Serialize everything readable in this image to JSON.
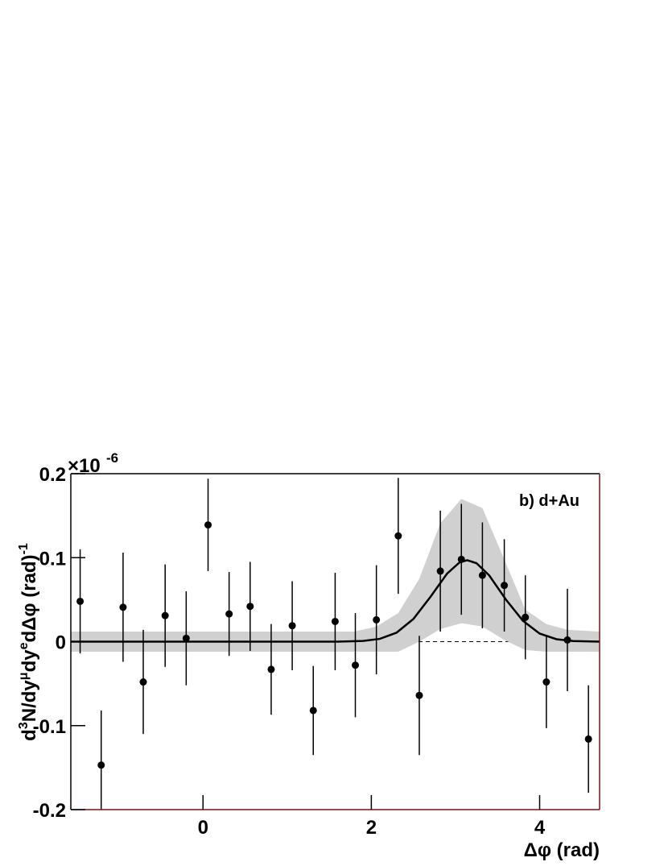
{
  "chart_data": {
    "type": "errorbar",
    "annotation": "b) d+Au",
    "xlabel": "Δφ (rad)",
    "ylabel_parts": [
      "d",
      "3",
      "N/dy",
      "μ",
      "dy",
      "e",
      "dΔφ (rad)",
      "-1"
    ],
    "y_multiplier": "×10",
    "y_exponent": "-6",
    "xlim": [
      -1.5708,
      4.7124
    ],
    "ylim": [
      -0.2,
      0.2
    ],
    "xticks": [
      0,
      2,
      4
    ],
    "yticks": [
      -0.2,
      -0.1,
      0,
      0.1,
      0.2
    ],
    "point_color": "#000000",
    "fit_color": "#000000",
    "band_color": "#d0d0d0",
    "points": {
      "x": [
        -1.46,
        -1.21,
        -0.95,
        -0.71,
        -0.45,
        -0.2,
        0.06,
        0.31,
        0.56,
        0.81,
        1.06,
        1.31,
        1.57,
        1.81,
        2.06,
        2.32,
        2.57,
        2.82,
        3.07,
        3.32,
        3.58,
        3.83,
        4.08,
        4.33,
        4.58
      ],
      "y": [
        0.048,
        -0.147,
        0.041,
        -0.048,
        0.031,
        0.004,
        0.139,
        0.033,
        0.042,
        -0.033,
        0.019,
        -0.082,
        0.024,
        -0.028,
        0.026,
        0.126,
        -0.064,
        0.084,
        0.098,
        0.079,
        0.067,
        0.029,
        -0.048,
        0.002,
        -0.116
      ],
      "yerr": [
        0.062,
        0.065,
        0.065,
        0.062,
        0.061,
        0.056,
        0.055,
        0.05,
        0.053,
        0.054,
        0.053,
        0.053,
        0.058,
        0.062,
        0.065,
        0.069,
        0.071,
        0.072,
        0.066,
        0.063,
        0.055,
        0.05,
        0.055,
        0.061,
        0.064
      ]
    },
    "fit": {
      "x": [
        -1.5708,
        1.6,
        1.9,
        2.1,
        2.3,
        2.5,
        2.7,
        2.9,
        3.05,
        3.14,
        3.25,
        3.4,
        3.6,
        3.8,
        4.0,
        4.2,
        4.4,
        4.7124
      ],
      "y": [
        0,
        0,
        0.0008,
        0.0033,
        0.0107,
        0.027,
        0.053,
        0.081,
        0.0945,
        0.097,
        0.0934,
        0.079,
        0.05,
        0.025,
        0.0096,
        0.0029,
        0.0007,
        0
      ]
    },
    "band": {
      "x": [
        -1.5708,
        1.8,
        2.06,
        2.32,
        2.57,
        2.82,
        3.07,
        3.32,
        3.58,
        3.83,
        4.08,
        4.33,
        4.7124
      ],
      "upper": [
        0.012,
        0.012,
        0.018,
        0.034,
        0.075,
        0.141,
        0.17,
        0.159,
        0.098,
        0.038,
        0.021,
        0.014,
        0.012
      ],
      "lower": [
        -0.012,
        -0.012,
        -0.012,
        -0.012,
        0.0,
        0.015,
        0.022,
        0.018,
        0.002,
        -0.01,
        -0.012,
        -0.012,
        -0.012
      ]
    }
  }
}
